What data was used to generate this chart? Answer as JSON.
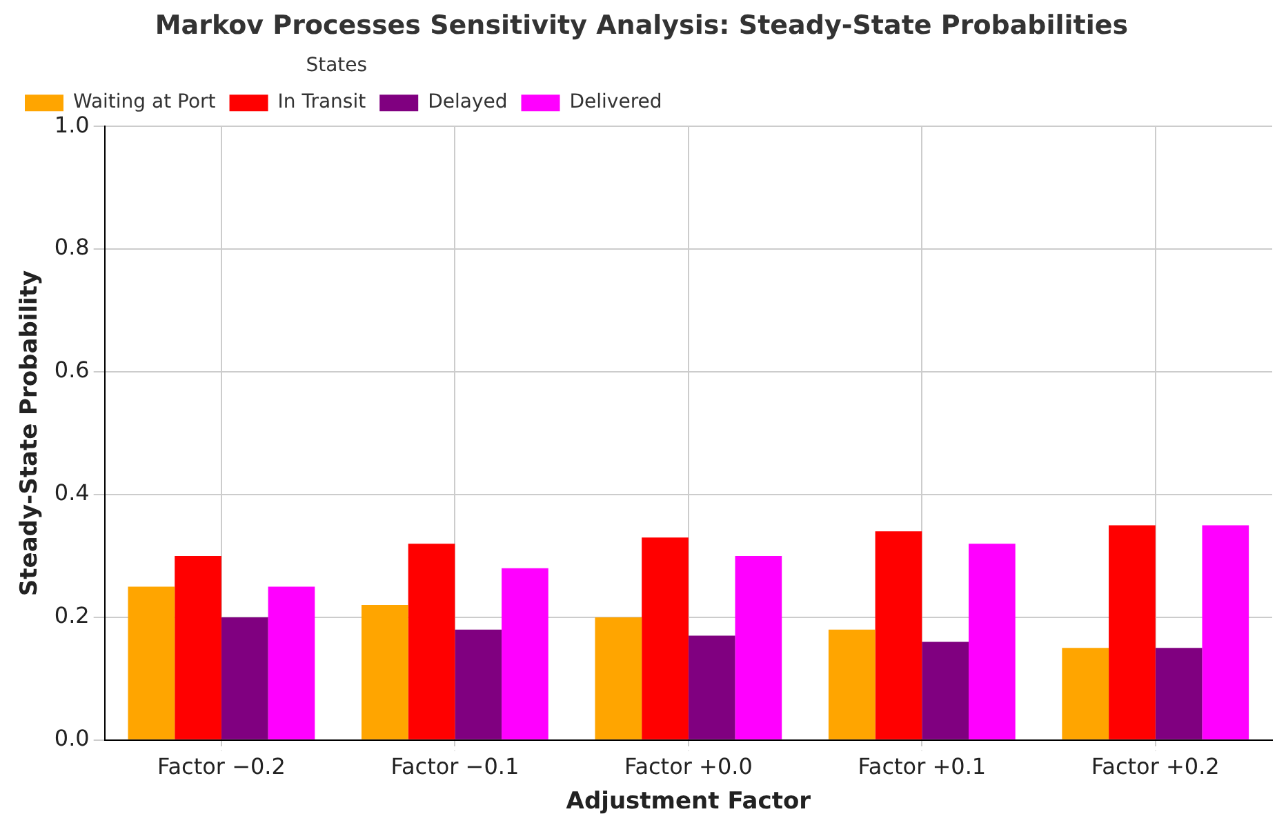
{
  "chart_data": {
    "type": "bar",
    "title": "Markov Processes Sensitivity Analysis: Steady-State Probabilities",
    "xlabel": "Adjustment Factor",
    "ylabel": "Steady-State Probability",
    "legend_title": "States",
    "categories": [
      "Factor −0.2",
      "Factor −0.1",
      "Factor +0.0",
      "Factor +0.1",
      "Factor +0.2"
    ],
    "series": [
      {
        "name": "Waiting at Port",
        "color": "#ffa500",
        "values": [
          0.25,
          0.22,
          0.2,
          0.18,
          0.15
        ]
      },
      {
        "name": "In Transit",
        "color": "#ff0000",
        "values": [
          0.3,
          0.32,
          0.33,
          0.34,
          0.35
        ]
      },
      {
        "name": "Delayed",
        "color": "#800080",
        "values": [
          0.2,
          0.18,
          0.17,
          0.16,
          0.15
        ]
      },
      {
        "name": "Delivered",
        "color": "#ff00ff",
        "values": [
          0.25,
          0.28,
          0.3,
          0.32,
          0.35
        ]
      }
    ],
    "ylim": [
      0,
      1
    ],
    "yticks": [
      {
        "value": 0,
        "label": "0.0"
      },
      {
        "value": 0.2,
        "label": "0.2"
      },
      {
        "value": 0.4,
        "label": "0.4"
      },
      {
        "value": 0.6,
        "label": "0.6"
      },
      {
        "value": 0.8,
        "label": "0.8"
      },
      {
        "value": 1,
        "label": "1.0"
      }
    ],
    "grid": true,
    "legend": "top left"
  }
}
